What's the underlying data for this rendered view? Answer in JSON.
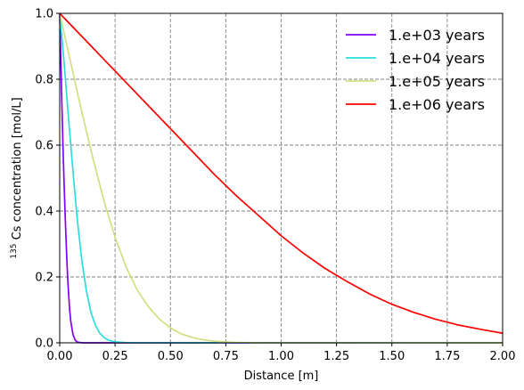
{
  "chart_data": {
    "type": "line",
    "xlabel": "Distance [m]",
    "ylabel": {
      "sup": "135",
      "text": " Cs concentration [mol/L]"
    },
    "xlim": [
      0,
      2
    ],
    "ylim": [
      0,
      1
    ],
    "xticks": [
      0,
      0.25,
      0.5,
      0.75,
      1.0,
      1.25,
      1.5,
      1.75,
      2.0
    ],
    "xtick_labels": [
      "0.00",
      "0.25",
      "0.50",
      "0.75",
      "1.00",
      "1.25",
      "1.50",
      "1.75",
      "2.00"
    ],
    "yticks": [
      0,
      0.2,
      0.4,
      0.6,
      0.8,
      1.0
    ],
    "ytick_labels": [
      "0.0",
      "0.2",
      "0.4",
      "0.6",
      "0.8",
      "1.0"
    ],
    "grid": true,
    "grid_style": "dashed",
    "legend_position": "top-right",
    "series": [
      {
        "name": "1.e+03 years",
        "color": "#8000ff",
        "x": [
          0,
          0.005,
          0.01,
          0.015,
          0.02,
          0.025,
          0.03,
          0.035,
          0.04,
          0.045,
          0.05,
          0.06,
          0.07,
          0.08,
          0.1,
          2.0
        ],
        "y": [
          1.0,
          0.86,
          0.72,
          0.59,
          0.48,
          0.38,
          0.29,
          0.21,
          0.15,
          0.1,
          0.065,
          0.025,
          0.008,
          0.002,
          0,
          0
        ]
      },
      {
        "name": "1.e+04 years",
        "color": "#2adddd",
        "x": [
          0,
          0.02,
          0.04,
          0.06,
          0.08,
          0.1,
          0.12,
          0.14,
          0.16,
          0.18,
          0.2,
          0.22,
          0.25,
          0.3,
          2.0
        ],
        "y": [
          1.0,
          0.85,
          0.68,
          0.52,
          0.37,
          0.25,
          0.16,
          0.095,
          0.055,
          0.03,
          0.016,
          0.008,
          0.003,
          0.0005,
          0
        ]
      },
      {
        "name": "1.e+05 years",
        "color": "#d4dd80",
        "x": [
          0,
          0.05,
          0.1,
          0.15,
          0.2,
          0.25,
          0.3,
          0.35,
          0.4,
          0.45,
          0.5,
          0.55,
          0.6,
          0.65,
          0.7,
          0.75,
          0.8,
          0.9,
          2.0
        ],
        "y": [
          1.0,
          0.85,
          0.7,
          0.56,
          0.43,
          0.32,
          0.23,
          0.16,
          0.11,
          0.072,
          0.045,
          0.027,
          0.016,
          0.009,
          0.005,
          0.0025,
          0.0012,
          0.0002,
          0
        ]
      },
      {
        "name": "1.e+06 years",
        "color": "#ff0000",
        "x": [
          0,
          0.1,
          0.2,
          0.3,
          0.4,
          0.5,
          0.6,
          0.7,
          0.8,
          0.9,
          1.0,
          1.1,
          1.2,
          1.3,
          1.4,
          1.5,
          1.6,
          1.7,
          1.8,
          1.9,
          2.0
        ],
        "y": [
          1.0,
          0.93,
          0.86,
          0.79,
          0.72,
          0.65,
          0.58,
          0.51,
          0.445,
          0.385,
          0.325,
          0.272,
          0.225,
          0.185,
          0.148,
          0.117,
          0.092,
          0.071,
          0.054,
          0.041,
          0.029
        ]
      }
    ]
  }
}
